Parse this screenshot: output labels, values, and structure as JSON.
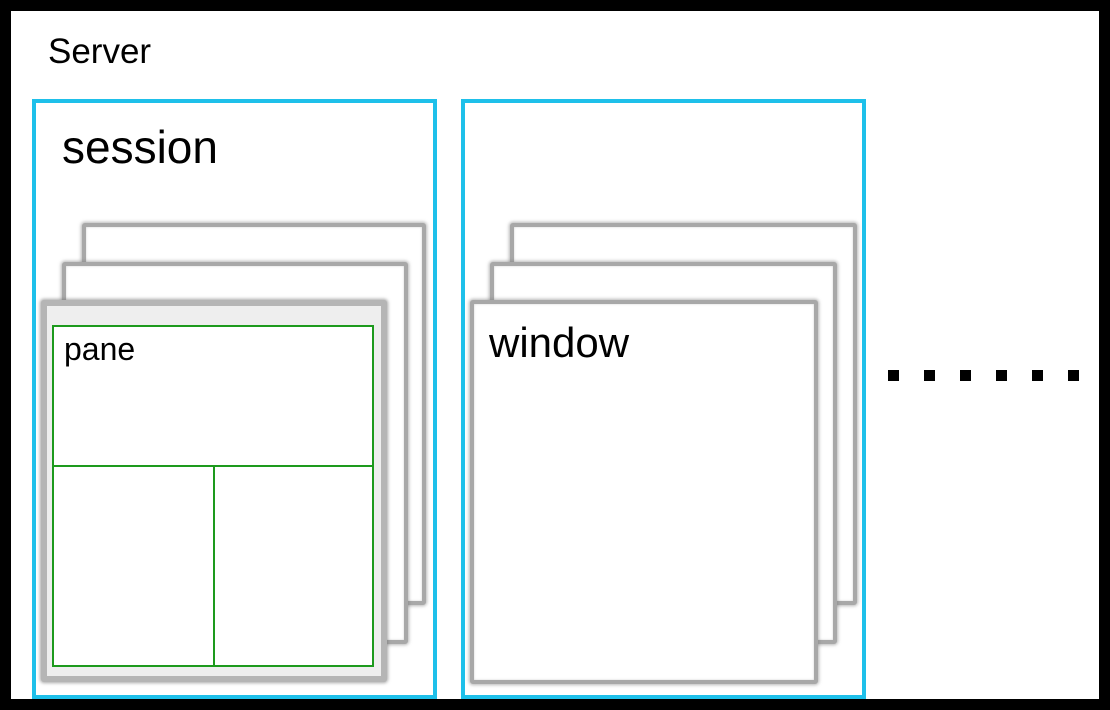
{
  "diagram": {
    "server_label": "Server",
    "session_label": "session",
    "pane_label": "pane",
    "window_label": "window",
    "ellipsis": "......",
    "colors": {
      "server_border": "#000000",
      "session_border": "#1ec0ea",
      "window_border": "#a8a8a8",
      "pane_border": "#1d9a1d"
    }
  }
}
